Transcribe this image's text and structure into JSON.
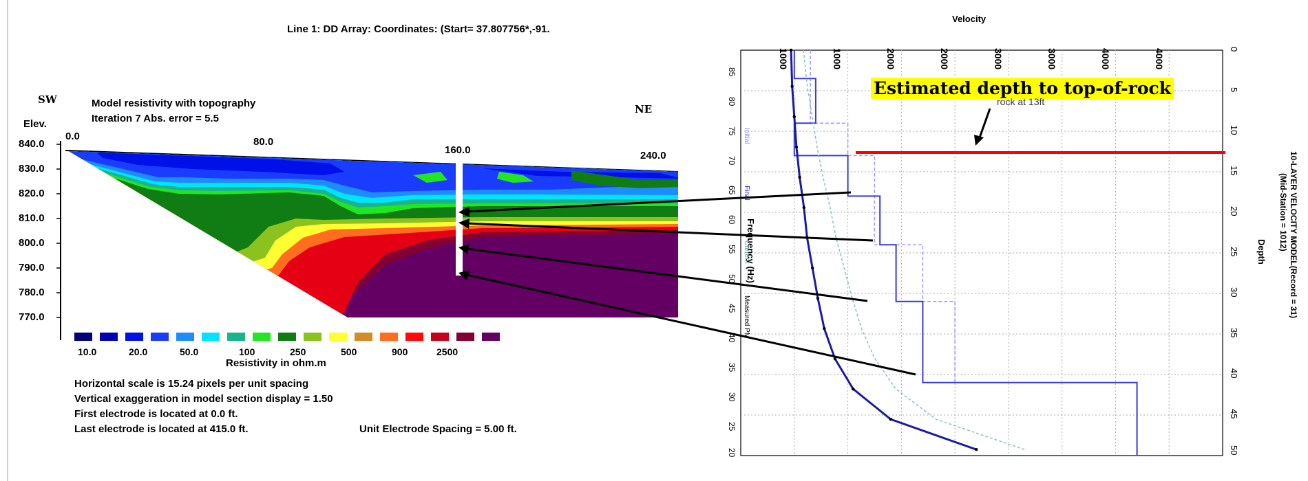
{
  "left": {
    "title": "Line 1: DD Array: Coordinates: (Start= 37.807756*,-91.",
    "sw": "SW",
    "ne": "NE",
    "model_title": "Model resistivity with topography",
    "iteration": "Iteration 7 Abs. error = 5.5",
    "elev_label": "Elev.",
    "x_ticks": [
      "0.0",
      "80.0",
      "160.0",
      "240.0"
    ],
    "y_ticks": [
      "840.0",
      "830.0",
      "820.0",
      "810.0",
      "800.0",
      "790.0",
      "780.0",
      "770.0"
    ],
    "legend": {
      "colors": [
        "#00007a",
        "#0000b4",
        "#0010e8",
        "#1a3cff",
        "#1e8cff",
        "#00e4ff",
        "#1ab48c",
        "#22e622",
        "#0f7d14",
        "#8cc21e",
        "#ffff32",
        "#d28c28",
        "#ff6e1e",
        "#ff0a0a",
        "#c8001e",
        "#820032",
        "#640064"
      ],
      "labels": [
        "10.0",
        "20.0",
        "50.0",
        "100",
        "250",
        "500",
        "900",
        "2500"
      ],
      "caption": "Resistivity in ohm.m"
    },
    "notes": [
      "Horizontal scale is 15.24 pixels per unit spacing",
      "Vertical exaggeration in model section display = 1.50",
      "First electrode is located at 0.0  ft."
    ],
    "last_note": "Last electrode is located at 415.0 ft.",
    "spacing_note": "Unit Electrode Spacing = 5.00 ft."
  },
  "right": {
    "top_label": "Velocity",
    "velocity_ticks": [
      "1000",
      "1000",
      "2000",
      "2000",
      "3000",
      "3000",
      "4000",
      "4000"
    ],
    "depth_ticks": [
      "0",
      "5",
      "10",
      "15",
      "20",
      "25",
      "30",
      "35",
      "40",
      "45",
      "50"
    ],
    "freq_ticks": [
      "85",
      "80",
      "75",
      "70",
      "65",
      "60",
      "55",
      "50",
      "45",
      "40",
      "35",
      "30",
      "25",
      "20"
    ],
    "freq_label": "Frequency (Hz)",
    "depth_label": "Depth",
    "model_title": "10-LAYER VELOCITY MODEL(Record = 31)",
    "model_sub": "(Mid-Station = 1012)",
    "legend": [
      "Initial",
      "Final",
      "Current",
      "Measured PM"
    ],
    "callout": "Estimated depth to top-of-rock",
    "under_callout": "rock at 13ft"
  },
  "chart_data": [
    {
      "type": "heatmap",
      "title": "Model resistivity with topography",
      "subtitle": "Iteration 7 Abs. error = 5.5",
      "xlabel": "",
      "ylabel": "Elev.",
      "x_ticks": [
        0.0,
        80.0,
        160.0,
        240.0
      ],
      "ylim": [
        770,
        840
      ],
      "colorbar_label": "Resistivity in ohm.m",
      "colorbar_ticks": [
        10.0,
        20.0,
        50.0,
        100,
        250,
        500,
        900,
        2500
      ]
    },
    {
      "type": "line",
      "title": "10-LAYER VELOCITY MODEL(Record = 31)",
      "xlabel": "Velocity",
      "ylabel": "Depth",
      "xlim": [
        0,
        4500
      ],
      "ylim": [
        50,
        0
      ],
      "secondary_ylabel": "Frequency (Hz)",
      "secondary_y_ticks": [
        85,
        80,
        75,
        70,
        65,
        60,
        55,
        50,
        45,
        40,
        35,
        30,
        25,
        20
      ],
      "series": [
        {
          "name": "Final",
          "depth": [
            0,
            3.5,
            3.5,
            9,
            9,
            13,
            13,
            18,
            18,
            24,
            24,
            31,
            31,
            41,
            41,
            50
          ],
          "velocity": [
            500,
            500,
            700,
            700,
            500,
            500,
            1000,
            1000,
            1300,
            1300,
            1450,
            1450,
            1700,
            1700,
            3700,
            3700
          ]
        },
        {
          "name": "Initial",
          "depth": [
            0,
            9,
            9,
            13,
            13,
            24,
            24,
            31,
            31,
            41,
            41,
            50
          ],
          "velocity": [
            650,
            650,
            1000,
            1000,
            1250,
            1250,
            1700,
            1700,
            2000,
            2000,
            3700,
            3700
          ]
        }
      ],
      "dispersion_curves": [
        {
          "name": "Measured PM",
          "frequency": [
            86,
            80,
            75,
            70,
            65,
            60,
            55,
            50,
            45,
            40,
            35,
            30,
            25,
            20
          ],
          "velocity": [
            470,
            480,
            500,
            520,
            550,
            590,
            620,
            670,
            720,
            780,
            880,
            1050,
            1400,
            2200
          ]
        }
      ],
      "annotation": "Estimated depth to top-of-rock",
      "annotation_depth": 13
    }
  ]
}
